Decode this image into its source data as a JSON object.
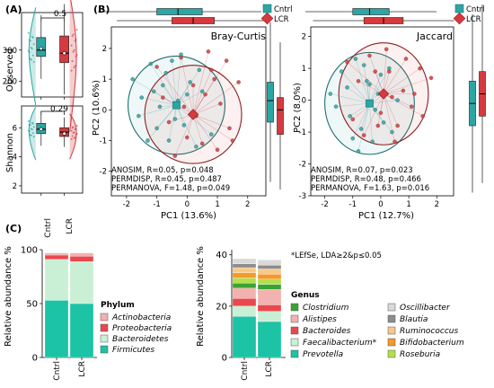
{
  "chart_data": [
    {
      "id": "A_observed",
      "type": "box",
      "panel_label": "(A)",
      "ylabel": "Observed",
      "ylim": [
        150,
        420
      ],
      "yticks": [
        200,
        300
      ],
      "categories": [
        "Cntrl",
        "LCR"
      ],
      "p_value": "0.5",
      "box": {
        "Cntrl": {
          "q1": 280,
          "median": 300,
          "q3": 340,
          "mean": 305
        },
        "LCR": {
          "q1": 260,
          "median": 290,
          "q3": 345,
          "mean": 290
        }
      }
    },
    {
      "id": "A_shannon",
      "type": "box",
      "ylabel": "Shannon",
      "ylim": [
        1.5,
        7.5
      ],
      "yticks": [
        2,
        4,
        6
      ],
      "categories": [
        "Cntrl",
        "LCR"
      ],
      "p_value": "0.29",
      "box": {
        "Cntrl": {
          "q1": 5.6,
          "median": 5.9,
          "q3": 6.3,
          "mean": 5.9
        },
        "LCR": {
          "q1": 5.4,
          "median": 5.7,
          "q3": 6.0,
          "mean": 5.6
        }
      }
    },
    {
      "id": "B_bray",
      "type": "scatter",
      "panel_label": "(B)",
      "title": "Bray-Curtis",
      "xlabel": "PC1 (13.6%)",
      "ylabel": "PC2 (10.6%)",
      "xlim": [
        -2.5,
        2.6
      ],
      "ylim": [
        -2.8,
        2.7
      ],
      "xticks": [
        -2,
        -1,
        0,
        1,
        2
      ],
      "yticks": [
        -2,
        -1,
        0,
        1,
        2
      ],
      "stats": [
        "ANOSIM, R=0.05, p=0.048",
        "PERMDISP, R=0.45, p=0.487",
        "PERMANOVA, F=1.48, p=0.049"
      ],
      "centroids": {
        "Cntrl": [
          -0.35,
          0.15
        ],
        "LCR": [
          0.2,
          -0.15
        ]
      },
      "series": [
        {
          "name": "Cntrl",
          "x": [
            -1.8,
            -1.5,
            -1.2,
            -1.0,
            -0.8,
            -0.6,
            -0.5,
            -0.3,
            -0.1,
            0.1,
            0.3,
            0.5,
            -1.6,
            -1.3,
            -0.9,
            -0.7,
            -0.4,
            0.0,
            0.4,
            0.8,
            -1.1,
            -0.2
          ],
          "y": [
            1.0,
            0.4,
            1.5,
            -0.6,
            0.8,
            -1.0,
            1.6,
            0.3,
            -0.5,
            0.9,
            -1.2,
            0.6,
            -0.2,
            -1.0,
            0.1,
            1.2,
            -0.3,
            0.5,
            1.3,
            -0.8,
            0.6,
            1.8
          ]
        },
        {
          "name": "LCR",
          "x": [
            -1.0,
            -0.6,
            -0.2,
            0.2,
            0.5,
            0.8,
            1.1,
            1.4,
            1.7,
            -0.4,
            0.0,
            0.6,
            1.0,
            1.3,
            -0.8,
            0.3,
            0.9,
            1.5,
            -0.1,
            0.7
          ],
          "y": [
            1.4,
            -0.4,
            1.7,
            0.8,
            -1.1,
            1.3,
            0.2,
            -0.6,
            0.9,
            -1.5,
            -0.9,
            0.5,
            -1.3,
            1.6,
            0.4,
            -0.2,
            1.0,
            -1.0,
            0.1,
            1.9
          ]
        }
      ],
      "top_box": {
        "Cntrl": {
          "q1": -1.0,
          "median": -0.3,
          "q3": 0.5
        },
        "LCR": {
          "q1": -0.5,
          "median": 0.2,
          "q3": 0.9
        }
      },
      "side_box": {
        "Cntrl": {
          "q1": -0.4,
          "median": 0.3,
          "q3": 0.9
        },
        "LCR": {
          "q1": -0.8,
          "median": 0.0,
          "q3": 0.4
        }
      }
    },
    {
      "id": "B_jaccard",
      "type": "scatter",
      "title": "Jaccard",
      "xlabel": "PC1 (12.7%)",
      "ylabel": "PC2 (8.0%)",
      "xlim": [
        -2.5,
        2.6
      ],
      "ylim": [
        -3.0,
        2.3
      ],
      "xticks": [
        -2,
        -1,
        0,
        1,
        2
      ],
      "yticks": [
        -3,
        -2,
        -1,
        0,
        1,
        2
      ],
      "stats": [
        "ANOSIM, R=0.07, p=0.023",
        "PERMDISP, R=0.48, p=0.466",
        "PERMANOVA, F=1.63, p=0.016"
      ],
      "centroids": {
        "Cntrl": [
          -0.4,
          -0.1
        ],
        "LCR": [
          0.1,
          0.2
        ]
      },
      "series": [
        {
          "name": "Cntrl",
          "x": [
            -1.8,
            -1.4,
            -1.1,
            -0.9,
            -0.7,
            -0.5,
            -0.3,
            -0.1,
            0.1,
            0.3,
            -1.6,
            -1.2,
            -0.8,
            -0.6,
            -0.2,
            0.0,
            0.4,
            -1.0,
            -0.4,
            0.6
          ],
          "y": [
            0.2,
            0.9,
            -0.5,
            1.3,
            -0.9,
            0.6,
            -1.3,
            0.2,
            -0.7,
            1.0,
            -0.2,
            0.4,
            -1.6,
            1.1,
            -0.3,
            0.8,
            -1.0,
            -1.2,
            0.5,
            0.0
          ]
        },
        {
          "name": "LCR",
          "x": [
            -1.2,
            -0.8,
            -0.4,
            0.0,
            0.3,
            0.6,
            0.9,
            1.2,
            1.5,
            1.8,
            -0.6,
            -0.2,
            0.2,
            0.5,
            0.8,
            1.1,
            -1.0,
            0.4,
            1.4,
            -0.1
          ],
          "y": [
            1.2,
            0.6,
            1.4,
            -0.4,
            0.9,
            -0.8,
            1.3,
            0.2,
            -0.5,
            0.7,
            -1.1,
            0.9,
            1.6,
            -1.3,
            0.3,
            -0.2,
            -0.6,
            0.1,
            1.0,
            -0.8
          ]
        }
      ],
      "top_box": {
        "Cntrl": {
          "q1": -1.0,
          "median": -0.4,
          "q3": 0.3
        },
        "LCR": {
          "q1": -0.6,
          "median": 0.1,
          "q3": 0.8
        }
      },
      "side_box": {
        "Cntrl": {
          "q1": -0.8,
          "median": -0.1,
          "q3": 0.6
        },
        "LCR": {
          "q1": -0.5,
          "median": 0.2,
          "q3": 0.9
        }
      }
    },
    {
      "id": "C_phylum",
      "type": "bar",
      "stacked": true,
      "panel_label": "(C)",
      "ylabel": "Relative abundance %",
      "ylim": [
        0,
        100
      ],
      "yticks": [
        0,
        50,
        100
      ],
      "categories": [
        "Cntrl",
        "LCR"
      ],
      "legend_title": "Phylum",
      "series": [
        {
          "name": "Firmicutes",
          "values": [
            53,
            50
          ]
        },
        {
          "name": "Bacteroidetes",
          "values": [
            38,
            39
          ]
        },
        {
          "name": "Proteobacteria",
          "values": [
            4,
            5
          ]
        },
        {
          "name": "Actinobacteria",
          "values": [
            2,
            3
          ]
        }
      ]
    },
    {
      "id": "C_genus",
      "type": "bar",
      "stacked": true,
      "ylabel": "Relative abundance %",
      "ylim": [
        0,
        42
      ],
      "yticks": [
        0,
        20,
        40
      ],
      "categories": [
        "Cntrl",
        "LCR"
      ],
      "legend_title": "Genus",
      "note": "*LEfSe, LDA≥2&p≤0.05",
      "series": [
        {
          "name": "Prevotella",
          "values": [
            16,
            14
          ]
        },
        {
          "name": "Faecalibacterium",
          "values": [
            4,
            4
          ]
        },
        {
          "name": "Bacteroides",
          "values": [
            3,
            2.5
          ]
        },
        {
          "name": "Alistipes",
          "values": [
            4,
            6
          ]
        },
        {
          "name": "Clostridium",
          "values": [
            2,
            2
          ]
        },
        {
          "name": "Roseburia",
          "values": [
            2,
            2
          ]
        },
        {
          "name": "Bifidobacterium",
          "values": [
            2,
            2
          ]
        },
        {
          "name": "Ruminococcus",
          "values": [
            2,
            2
          ]
        },
        {
          "name": "Blautia",
          "values": [
            1.5,
            1.5
          ]
        },
        {
          "name": "Oscillibacter",
          "values": [
            2,
            2
          ]
        }
      ]
    }
  ],
  "legend": {
    "cntrl": "Cntrl",
    "lcr": "LCR"
  },
  "genus_legend_marker": "*",
  "colors": {
    "cntrl": "#2aa7a5",
    "lcr": "#d63a3f",
    "Firmicutes": "#1cc3a4",
    "Bacteroidetes": "#c9f0d5",
    "Proteobacteria": "#e8484e",
    "Actinobacteria": "#f2b2b0",
    "Prevotella": "#1cc3a4",
    "Faecalibacterium": "#c9f0d5",
    "Bacteroides": "#e8484e",
    "Alistipes": "#f2b2b0",
    "Clostridium": "#3aa336",
    "Roseburia": "#b3e04e",
    "Bifidobacterium": "#f39a2b",
    "Ruminococcus": "#f7c98a",
    "Blautia": "#8c8c8c",
    "Oscillibacter": "#d9d9d9"
  }
}
